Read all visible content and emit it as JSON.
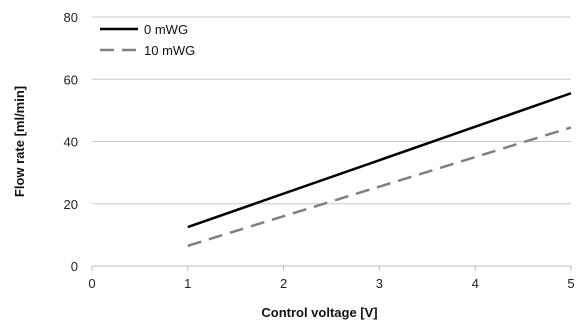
{
  "chart_data": {
    "type": "line",
    "title": "",
    "xlabel": "Control voltage [V]",
    "ylabel": "Flow rate [ml/min]",
    "xlim": [
      0,
      5
    ],
    "ylim": [
      0,
      80
    ],
    "x_ticks": [
      0,
      1,
      2,
      3,
      4,
      5
    ],
    "y_ticks": [
      0,
      20,
      40,
      60,
      80
    ],
    "grid": "horizontal",
    "legend_position": "top-left",
    "series": [
      {
        "name": "0 mWG",
        "color": "#000000",
        "style": "solid",
        "x": [
          1,
          5
        ],
        "y": [
          12.5,
          55.5
        ]
      },
      {
        "name": "10 mWG",
        "color": "#808080",
        "style": "dashed",
        "x": [
          1,
          5
        ],
        "y": [
          6.5,
          44.5
        ]
      }
    ]
  }
}
